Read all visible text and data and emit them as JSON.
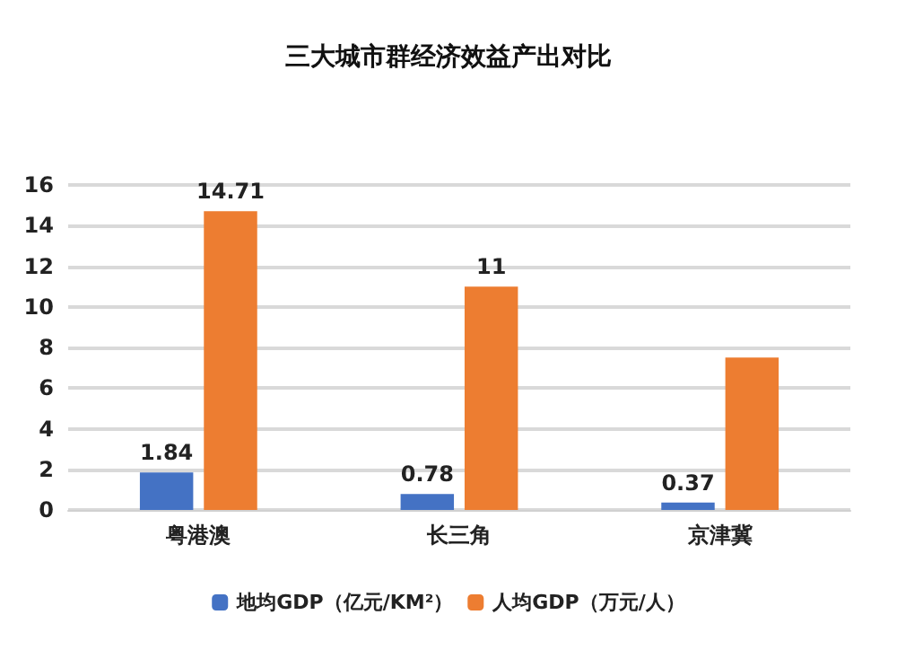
{
  "chart_data": {
    "type": "bar",
    "title": "三大城市群经济效益产出对比",
    "categories": [
      "粤港澳",
      "长三角",
      "京津冀"
    ],
    "series": [
      {
        "name": "地均GDP（亿元/KM²）",
        "color": "#4472c4",
        "values": [
          1.84,
          0.78,
          0.37
        ],
        "value_labels": [
          "1.84",
          "0.78",
          "0.37"
        ]
      },
      {
        "name": "人均GDP（万元/人）",
        "color": "#ed7d31",
        "values": [
          14.71,
          11,
          7.5
        ],
        "value_labels": [
          "14.71",
          "11",
          null
        ]
      }
    ],
    "ylim": [
      0,
      16
    ],
    "yticks": [
      0,
      2,
      4,
      6,
      8,
      10,
      12,
      14,
      16
    ],
    "grid": "y",
    "legend": "bottom"
  }
}
